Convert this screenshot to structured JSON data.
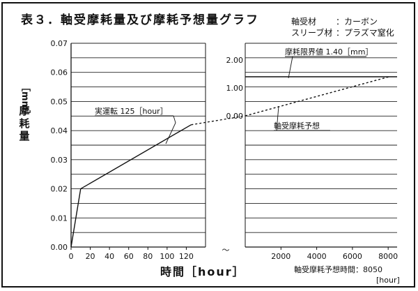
{
  "title": "表３．軸受摩耗量及び摩耗予想量グラフ",
  "materials": [
    {
      "key": "軸受材",
      "value": "：カーボン"
    },
    {
      "key": "スリーブ材",
      "value": "：プラズマ窒化"
    }
  ],
  "lifetime": {
    "label": "軸受摩耗予想時間：8050",
    "unit": "[hour]"
  },
  "chart_data": [
    {
      "type": "line",
      "name": "measured",
      "xlabel": "時間［hour］",
      "ylabel": "摩耗量",
      "ylabel_unit": "［mm］",
      "x_ticks": [
        "0",
        "20",
        "40",
        "60",
        "80",
        "100",
        "120"
      ],
      "y_ticks": [
        "0.00",
        "0.01",
        "0.02",
        "0.03",
        "0.04",
        "0.05",
        "0.06",
        "0.07"
      ],
      "xlim": [
        0,
        140
      ],
      "ylim": [
        0,
        0.07
      ],
      "grid": true,
      "x": [
        0,
        10,
        125
      ],
      "y": [
        0,
        0.02,
        0.042
      ],
      "annotation": "実運転 125［hour］"
    },
    {
      "type": "line",
      "name": "predicted",
      "x_ticks": [
        "2000",
        "4000",
        "6000",
        "8000"
      ],
      "y_ticks": [
        "0.00",
        "1.00",
        "2.00"
      ],
      "xlim": [
        0,
        8500
      ],
      "ylim": [
        0,
        2.5
      ],
      "grid": true,
      "x": [
        0,
        8050
      ],
      "y": [
        0,
        1.4
      ],
      "dashed": true,
      "limit_line": {
        "value": 1.4,
        "label": "摩耗限界値 1.40［mm］"
      },
      "annotation": "軸受摩耗予想"
    }
  ],
  "break_symbol": "～"
}
